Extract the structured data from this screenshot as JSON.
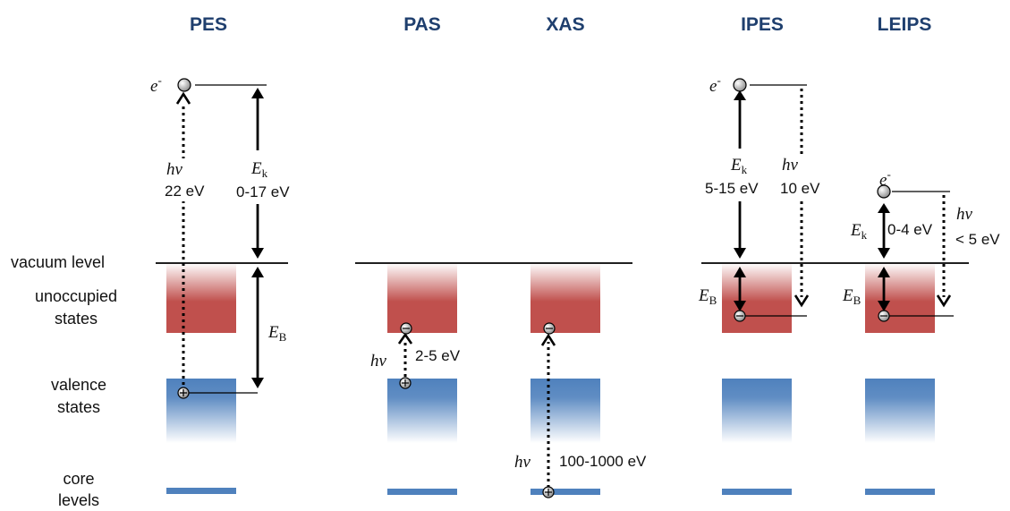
{
  "headers": {
    "pes": "PES",
    "pas": "PAS",
    "xas": "XAS",
    "ipes": "IPES",
    "leips": "LEIPS"
  },
  "side_labels": {
    "vacuum": "vacuum level",
    "unocc_1": "unoccupied",
    "unocc_2": "states",
    "valence_1": "valence",
    "valence_2": "states",
    "core_1": "core",
    "core_2": "levels"
  },
  "pes": {
    "electron": "e",
    "electron_sup": "-",
    "photon": "hν",
    "photon_energy": "22 eV",
    "ek_main": "E",
    "ek_sub": "k",
    "ek_range": "0-17 eV",
    "eb_main": "E",
    "eb_sub": "B"
  },
  "pas": {
    "photon": "hν",
    "energy": "2-5 eV"
  },
  "xas": {
    "photon": "hν",
    "energy": "100-1000 eV"
  },
  "ipes": {
    "electron": "e",
    "electron_sup": "-",
    "ek_main": "E",
    "ek_sub": "k",
    "ek_range": "5-15 eV",
    "photon": "hν",
    "photon_energy": "10 eV",
    "eb_main": "E",
    "eb_sub": "B"
  },
  "leips": {
    "electron": "e",
    "electron_sup": "-",
    "ek_main": "E",
    "ek_sub": "k",
    "ek_range": "0-4 eV",
    "photon": "hν",
    "photon_energy": "< 5 eV",
    "eb_main": "E",
    "eb_sub": "B"
  },
  "colors": {
    "unoccupied": "#c0504d",
    "valence": "#4f81bd",
    "header": "#1f3f6e"
  }
}
